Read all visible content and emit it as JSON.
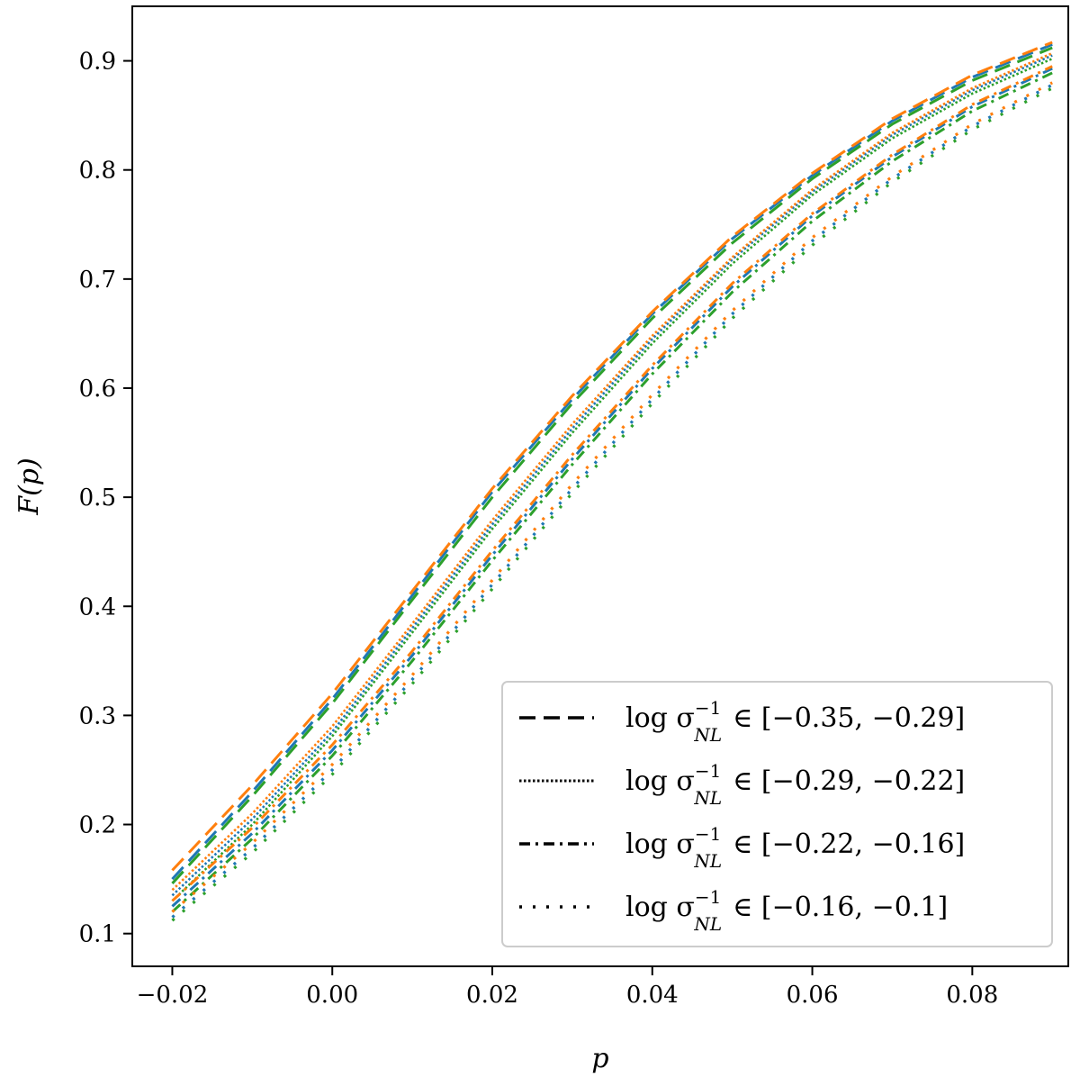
{
  "chart_data": {
    "type": "line",
    "xlabel": "p",
    "ylabel": "F(p)",
    "xlim": [
      -0.025,
      0.092
    ],
    "ylim": [
      0.07,
      0.95
    ],
    "xticks": [
      -0.02,
      0.0,
      0.02,
      0.04,
      0.06,
      0.08
    ],
    "xtick_labels": [
      "−0.02",
      "0.00",
      "0.02",
      "0.04",
      "0.06",
      "0.08"
    ],
    "yticks": [
      0.1,
      0.2,
      0.3,
      0.4,
      0.5,
      0.6,
      0.7,
      0.8,
      0.9
    ],
    "ytick_labels": [
      "0.1",
      "0.2",
      "0.3",
      "0.4",
      "0.5",
      "0.6",
      "0.7",
      "0.8",
      "0.9"
    ],
    "grid": false,
    "legend_position": "bottom-right",
    "x": [
      -0.02,
      -0.01,
      0.0,
      0.01,
      0.02,
      0.03,
      0.04,
      0.05,
      0.06,
      0.07,
      0.08,
      0.09
    ],
    "series": [
      {
        "name": "log σ_NL^-1 ∈ [−0.35, −0.29]",
        "legend_label": "log σ",
        "legend_range": "∈ [−0.35, −0.29]",
        "style": "dashed",
        "curves": [
          {
            "color": "#1f77b4",
            "values": [
              0.15,
              0.23,
              0.315,
              0.41,
              0.505,
              0.59,
              0.668,
              0.737,
              0.795,
              0.845,
              0.885,
              0.915
            ]
          },
          {
            "color": "#ff7f0e",
            "values": [
              0.158,
              0.236,
              0.32,
              0.414,
              0.508,
              0.593,
              0.67,
              0.739,
              0.797,
              0.847,
              0.887,
              0.917
            ]
          },
          {
            "color": "#2ca02c",
            "values": [
              0.146,
              0.226,
              0.311,
              0.406,
              0.5,
              0.586,
              0.664,
              0.733,
              0.792,
              0.842,
              0.882,
              0.912
            ]
          }
        ]
      },
      {
        "name": "log σ_NL^-1 ∈ [−0.29, −0.22]",
        "legend_label": "log σ",
        "legend_range": "∈ [−0.29, −0.22]",
        "style": "dotted",
        "curves": [
          {
            "color": "#1f77b4",
            "values": [
              0.135,
              0.205,
              0.285,
              0.38,
              0.475,
              0.563,
              0.645,
              0.718,
              0.78,
              0.832,
              0.873,
              0.905
            ]
          },
          {
            "color": "#ff7f0e",
            "values": [
              0.14,
              0.21,
              0.29,
              0.384,
              0.479,
              0.567,
              0.648,
              0.72,
              0.782,
              0.834,
              0.875,
              0.907
            ]
          },
          {
            "color": "#2ca02c",
            "values": [
              0.13,
              0.2,
              0.281,
              0.376,
              0.471,
              0.559,
              0.641,
              0.714,
              0.777,
              0.829,
              0.87,
              0.902
            ]
          }
        ]
      },
      {
        "name": "log σ_NL^-1 ∈ [−0.22, −0.16]",
        "legend_label": "log σ",
        "legend_range": "∈ [−0.22, −0.16]",
        "style": "dashdot",
        "curves": [
          {
            "color": "#1f77b4",
            "values": [
              0.125,
              0.192,
              0.268,
              0.355,
              0.447,
              0.535,
              0.618,
              0.693,
              0.758,
              0.812,
              0.858,
              0.893
            ]
          },
          {
            "color": "#ff7f0e",
            "values": [
              0.13,
              0.197,
              0.273,
              0.359,
              0.451,
              0.539,
              0.621,
              0.696,
              0.76,
              0.814,
              0.86,
              0.895
            ]
          },
          {
            "color": "#2ca02c",
            "values": [
              0.12,
              0.187,
              0.263,
              0.35,
              0.442,
              0.53,
              0.613,
              0.688,
              0.753,
              0.808,
              0.854,
              0.889
            ]
          }
        ]
      },
      {
        "name": "log σ_NL^-1 ∈ [−0.16, −0.1]",
        "legend_label": "log σ",
        "legend_range": "∈ [−0.16, −0.1]",
        "style": "loosedot",
        "curves": [
          {
            "color": "#1f77b4",
            "values": [
              0.115,
              0.178,
              0.25,
              0.333,
              0.42,
              0.508,
              0.59,
              0.668,
              0.735,
              0.792,
              0.84,
              0.878
            ]
          },
          {
            "color": "#ff7f0e",
            "values": [
              0.12,
              0.183,
              0.255,
              0.337,
              0.424,
              0.512,
              0.594,
              0.671,
              0.738,
              0.794,
              0.842,
              0.88
            ]
          },
          {
            "color": "#2ca02c",
            "values": [
              0.112,
              0.174,
              0.246,
              0.329,
              0.416,
              0.504,
              0.586,
              0.664,
              0.731,
              0.789,
              0.837,
              0.875
            ]
          }
        ]
      }
    ],
    "legend_sup": "−1",
    "legend_sub": "NL"
  }
}
